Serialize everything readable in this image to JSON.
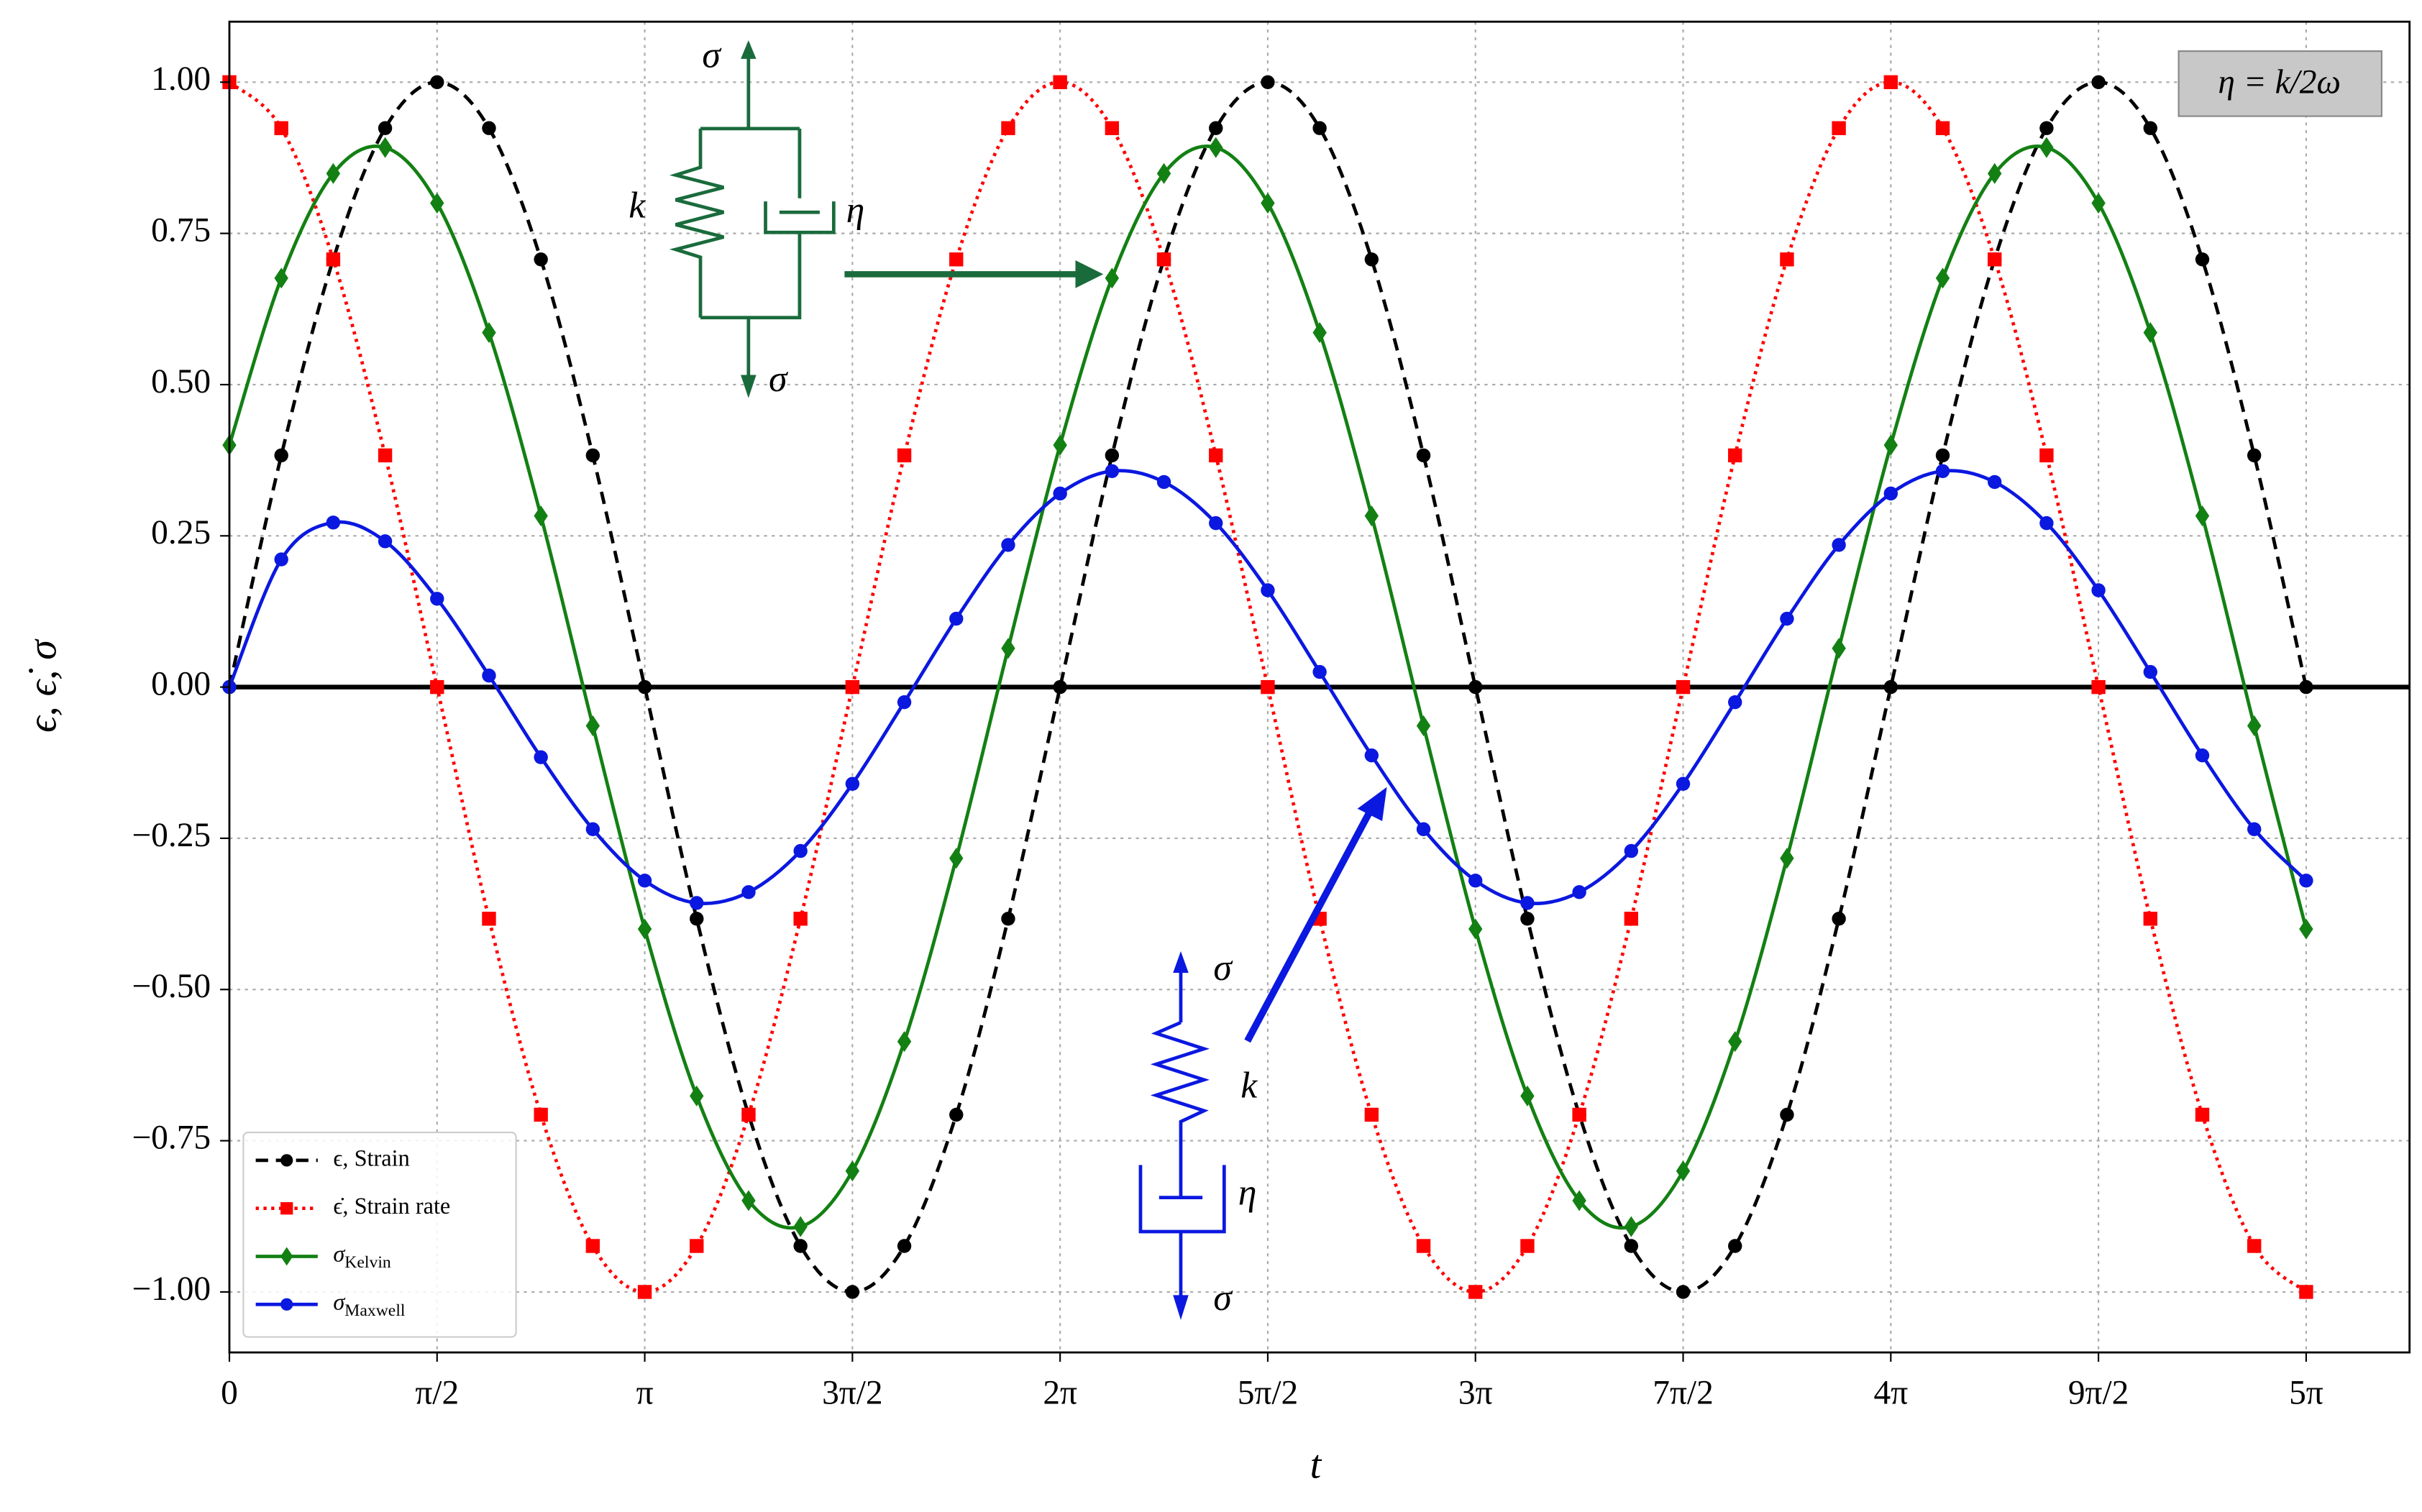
{
  "chart_data": {
    "type": "line",
    "xlabel": "t",
    "ylabel": "ϵ, ϵ̇, σ",
    "annotation": "η = k/2ω",
    "kelvin_diagram": {
      "labels": [
        "σ",
        "k",
        "η",
        "σ"
      ]
    },
    "maxwell_diagram": {
      "labels": [
        "σ",
        "k",
        "η",
        "σ"
      ]
    },
    "xlim": [
      0,
      16.49
    ],
    "ylim": [
      -1.1,
      1.1
    ],
    "grid": true,
    "legend": "lower left",
    "xticks": [
      0,
      {
        "value": 1.5708,
        "label": "π/2"
      },
      {
        "value": 3.1416,
        "label": "π"
      },
      {
        "value": 4.7124,
        "label": "3π/2"
      },
      {
        "value": 6.2832,
        "label": "2π"
      },
      {
        "value": 7.854,
        "label": "5π/2"
      },
      {
        "value": 9.4248,
        "label": "3π"
      },
      {
        "value": 10.9956,
        "label": "7π/2"
      },
      {
        "value": 12.5664,
        "label": "4π"
      },
      {
        "value": 14.1372,
        "label": "9π/2"
      },
      {
        "value": 15.708,
        "label": "5π"
      }
    ],
    "yticks": [
      {
        "value": -1,
        "label": "−1.00"
      },
      {
        "value": -0.75,
        "label": "−0.75"
      },
      {
        "value": -0.5,
        "label": "−0.50"
      },
      {
        "value": -0.25,
        "label": "−0.25"
      },
      {
        "value": 0,
        "label": "0.00"
      },
      {
        "value": 0.25,
        "label": "0.25"
      },
      {
        "value": 0.5,
        "label": "0.50"
      },
      {
        "value": 0.75,
        "label": "0.75"
      },
      {
        "value": 1,
        "label": "1.00"
      }
    ],
    "x": [
      0,
      0.3927,
      0.7854,
      1.1781,
      1.5708,
      1.9635,
      2.3562,
      2.7489,
      3.1416,
      3.5343,
      3.927,
      4.3197,
      4.7124,
      5.1051,
      5.4978,
      5.8905,
      6.2832,
      6.6759,
      7.0686,
      7.4613,
      7.854,
      8.2467,
      8.6394,
      9.0321,
      9.4248,
      9.8175,
      10.2102,
      10.6029,
      10.9956,
      11.3883,
      11.781,
      12.1737,
      12.5664,
      12.9591,
      13.3518,
      13.7445,
      14.1372,
      14.5299,
      14.9226,
      15.3153,
      15.708
    ],
    "series": [
      {
        "name": "ϵ, Strain",
        "color": "#000000",
        "linestyle": "dashed",
        "marker": "circle",
        "values": [
          0,
          0.383,
          0.707,
          0.924,
          1,
          0.924,
          0.707,
          0.383,
          0,
          -0.383,
          -0.707,
          -0.924,
          -1,
          -0.924,
          -0.707,
          -0.383,
          0,
          0.383,
          0.707,
          0.924,
          1,
          0.924,
          0.707,
          0.383,
          0,
          -0.383,
          -0.707,
          -0.924,
          -1,
          -0.924,
          -0.707,
          -0.383,
          0,
          0.383,
          0.707,
          0.924,
          1,
          0.924,
          0.707,
          0.383,
          0
        ]
      },
      {
        "name": "ϵ̇, Strain rate",
        "color": "#ff0000",
        "linestyle": "dotted",
        "marker": "square",
        "values": [
          1,
          0.924,
          0.707,
          0.383,
          0,
          -0.383,
          -0.707,
          -0.924,
          -1,
          -0.924,
          -0.707,
          -0.383,
          0,
          0.383,
          0.707,
          0.924,
          1,
          0.924,
          0.707,
          0.383,
          0,
          -0.383,
          -0.707,
          -0.924,
          -1,
          -0.924,
          -0.707,
          -0.383,
          0,
          0.383,
          0.707,
          0.924,
          1,
          0.924,
          0.707,
          0.383,
          0,
          -0.383,
          -0.707,
          -0.924,
          -1
        ]
      },
      {
        "name": "σKelvin",
        "color": "#138013",
        "linestyle": "solid",
        "marker": "diamond",
        "values": [
          0.4,
          0.676,
          0.849,
          0.892,
          0.8,
          0.586,
          0.283,
          -0.064,
          -0.4,
          -0.676,
          -0.849,
          -0.892,
          -0.8,
          -0.586,
          -0.283,
          0.064,
          0.4,
          0.676,
          0.849,
          0.892,
          0.8,
          0.586,
          0.283,
          -0.064,
          -0.4,
          -0.676,
          -0.849,
          -0.892,
          -0.8,
          -0.586,
          -0.283,
          0.064,
          0.4,
          0.676,
          0.849,
          0.892,
          0.8,
          0.586,
          0.283,
          -0.064,
          -0.4
        ]
      },
      {
        "name": "σMaxwell",
        "color": "#0b18e0",
        "linestyle": "solid",
        "marker": "circle",
        "values": [
          0,
          0.211,
          0.272,
          0.241,
          0.146,
          0.019,
          -0.116,
          -0.235,
          -0.32,
          -0.357,
          -0.339,
          -0.271,
          -0.16,
          -0.025,
          0.113,
          0.235,
          0.32,
          0.357,
          0.339,
          0.271,
          0.16,
          0.025,
          -0.113,
          -0.235,
          -0.32,
          -0.357,
          -0.339,
          -0.271,
          -0.16,
          -0.025,
          0.113,
          0.235,
          0.32,
          0.357,
          0.339,
          0.271,
          0.16,
          0.025,
          -0.113,
          -0.235,
          -0.32
        ]
      }
    ]
  }
}
